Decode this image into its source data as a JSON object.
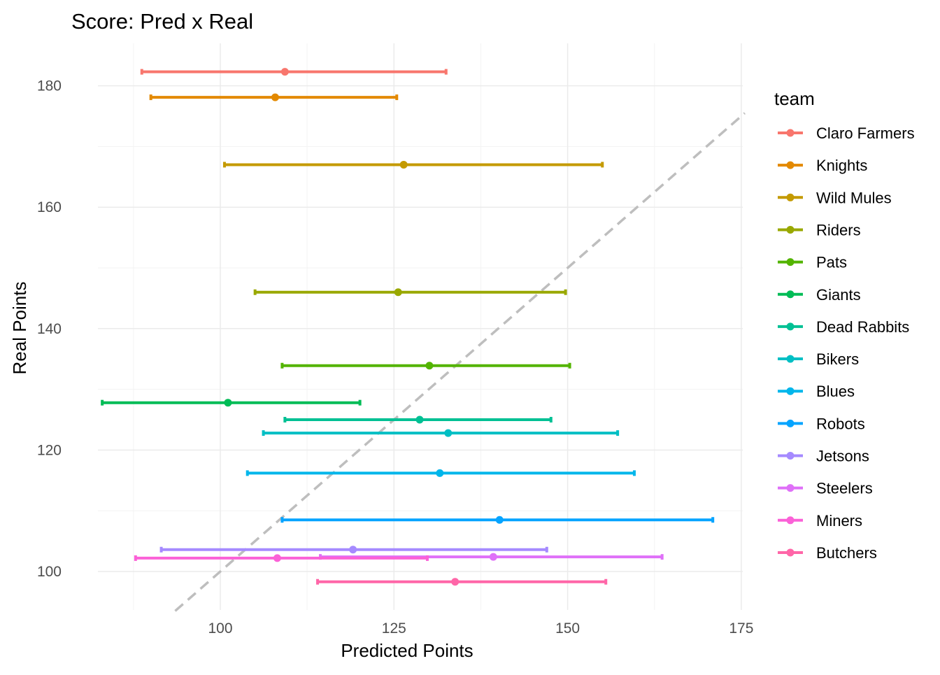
{
  "chart_data": {
    "type": "scatter",
    "title": "Score: Pred x Real",
    "xlabel": "Predicted Points",
    "ylabel": "Real Points",
    "xlim": [
      75,
      177
    ],
    "ylim": [
      93.5,
      187
    ],
    "x_ticks": [
      100,
      125,
      150,
      175
    ],
    "y_ticks": [
      100,
      120,
      140,
      160,
      180
    ],
    "grid": true,
    "reference_line": {
      "type": "identity",
      "style": "dashed",
      "color": "#BEBEBE"
    },
    "legend": {
      "title": "team",
      "position": "right"
    },
    "series": [
      {
        "name": "Claro Farmers",
        "color": "#F8766D",
        "x": 109.3,
        "xmin": 88.7,
        "xmax": 132.5,
        "y": 182.3
      },
      {
        "name": "Knights",
        "color": "#E38900",
        "x": 107.9,
        "xmin": 90.0,
        "xmax": 125.4,
        "y": 178.1
      },
      {
        "name": "Wild Mules",
        "color": "#C49A00",
        "x": 126.4,
        "xmin": 100.6,
        "xmax": 155.0,
        "y": 167.0
      },
      {
        "name": "Riders",
        "color": "#99A800",
        "x": 125.6,
        "xmin": 105.0,
        "xmax": 149.7,
        "y": 146.0
      },
      {
        "name": "Pats",
        "color": "#53B400",
        "x": 130.1,
        "xmin": 108.9,
        "xmax": 150.3,
        "y": 133.9
      },
      {
        "name": "Giants",
        "color": "#00BC56",
        "x": 101.1,
        "xmin": 83.0,
        "xmax": 120.1,
        "y": 127.8
      },
      {
        "name": "Dead Rabbits",
        "color": "#00C094",
        "x": 128.7,
        "xmin": 109.3,
        "xmax": 147.6,
        "y": 125.0
      },
      {
        "name": "Bikers",
        "color": "#00BFC4",
        "x": 132.8,
        "xmin": 106.2,
        "xmax": 157.2,
        "y": 122.8
      },
      {
        "name": "Blues",
        "color": "#00B6EB",
        "x": 131.6,
        "xmin": 103.9,
        "xmax": 159.6,
        "y": 116.2
      },
      {
        "name": "Robots",
        "color": "#06A4FF",
        "x": 140.2,
        "xmin": 108.9,
        "xmax": 170.9,
        "y": 108.5
      },
      {
        "name": "Jetsons",
        "color": "#A58AFF",
        "x": 119.1,
        "xmin": 91.5,
        "xmax": 147.0,
        "y": 103.6
      },
      {
        "name": "Steelers",
        "color": "#DF70F8",
        "x": 139.3,
        "xmin": 114.4,
        "xmax": 163.6,
        "y": 102.4
      },
      {
        "name": "Miners",
        "color": "#FB61D7",
        "x": 108.2,
        "xmin": 87.8,
        "xmax": 129.8,
        "y": 102.2
      },
      {
        "name": "Butchers",
        "color": "#FF66A8",
        "x": 133.8,
        "xmin": 114.0,
        "xmax": 155.5,
        "y": 98.3
      }
    ]
  }
}
